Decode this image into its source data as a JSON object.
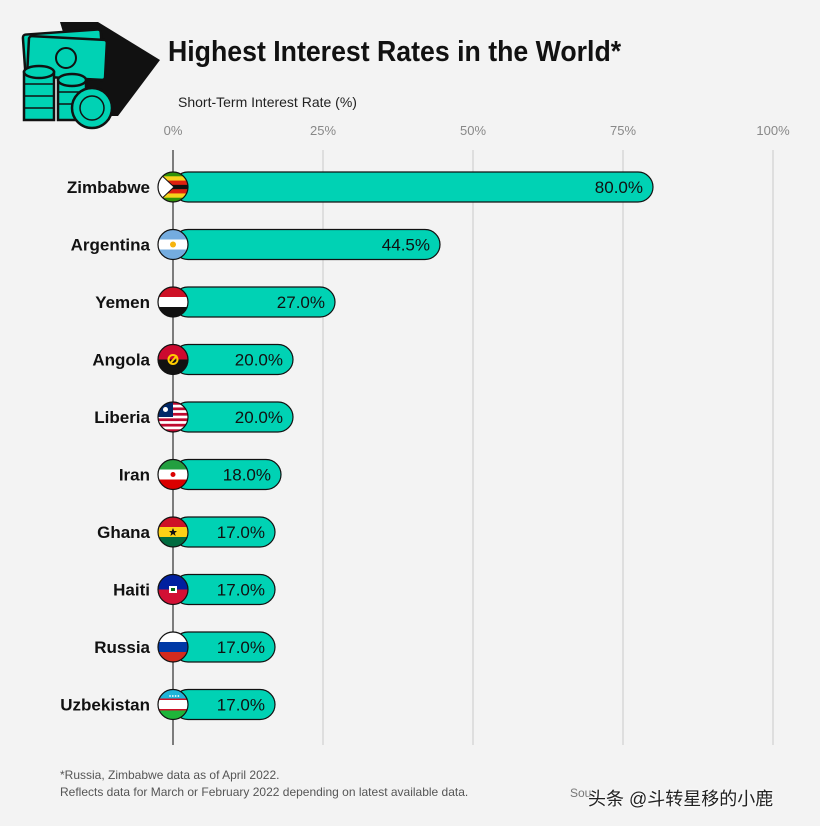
{
  "header": {
    "title": "Highest Interest Rates in the World*",
    "logo_icon": "money-stack-coins-icon"
  },
  "chart_data": {
    "type": "bar",
    "orientation": "horizontal",
    "title": "Highest Interest Rates in the World*",
    "xlabel": "Short-Term Interest Rate (%)",
    "ylabel": "",
    "xlim": [
      0,
      100
    ],
    "x_ticks": [
      "0%",
      "25%",
      "50%",
      "75%",
      "100%"
    ],
    "grid": true,
    "categories": [
      "Zimbabwe",
      "Argentina",
      "Yemen",
      "Angola",
      "Liberia",
      "Iran",
      "Ghana",
      "Haiti",
      "Russia",
      "Uzbekistan"
    ],
    "values": [
      80.0,
      44.5,
      27.0,
      20.0,
      20.0,
      18.0,
      17.0,
      17.0,
      17.0,
      17.0
    ],
    "value_labels": [
      "80.0%",
      "44.5%",
      "27.0%",
      "20.0%",
      "20.0%",
      "18.0%",
      "17.0%",
      "17.0%",
      "17.0%",
      "17.0%"
    ],
    "flag_icons": [
      "zimbabwe-flag-icon",
      "argentina-flag-icon",
      "yemen-flag-icon",
      "angola-flag-icon",
      "liberia-flag-icon",
      "iran-flag-icon",
      "ghana-flag-icon",
      "haiti-flag-icon",
      "russia-flag-icon",
      "uzbekistan-flag-icon"
    ],
    "colors": {
      "bar": "#00d2b4",
      "bar_outline": "#111111",
      "grid": "#c8c8c8",
      "axis": "#555555"
    }
  },
  "footer": {
    "note_line1": "*Russia, Zimbabwe data as of April 2022.",
    "note_line2": "Reflects data for March or February 2022 depending on latest available data.",
    "source_prefix": "Sou",
    "watermark": "头条 @斗转星移的小鹿"
  }
}
